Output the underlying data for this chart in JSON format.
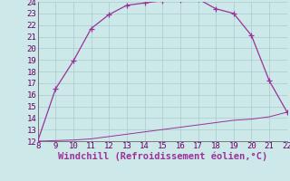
{
  "xlabel": "Windchill (Refroidissement éolien,°C)",
  "background_color": "#cce8e8",
  "line_color": "#993399",
  "grid_color": "#b8d8d8",
  "xlim": [
    8,
    22
  ],
  "ylim": [
    12,
    24
  ],
  "xticks": [
    8,
    9,
    10,
    11,
    12,
    13,
    14,
    15,
    16,
    17,
    18,
    19,
    20,
    21,
    22
  ],
  "yticks": [
    12,
    13,
    14,
    15,
    16,
    17,
    18,
    19,
    20,
    21,
    22,
    23,
    24
  ],
  "curve1_x": [
    8,
    9,
    10,
    11,
    12,
    13,
    14,
    15,
    16,
    17,
    18,
    19,
    20,
    21,
    22
  ],
  "curve1_y": [
    12.0,
    16.5,
    18.9,
    21.7,
    22.9,
    23.7,
    23.9,
    24.1,
    24.15,
    24.25,
    23.4,
    23.0,
    21.1,
    17.2,
    14.5
  ],
  "curve2_x": [
    8,
    9,
    10,
    11,
    12,
    13,
    14,
    15,
    16,
    17,
    18,
    19,
    20,
    21,
    22
  ],
  "curve2_y": [
    12.0,
    12.05,
    12.1,
    12.2,
    12.4,
    12.6,
    12.8,
    13.0,
    13.2,
    13.4,
    13.6,
    13.8,
    13.9,
    14.1,
    14.5
  ],
  "tick_fontsize": 6.5,
  "xlabel_fontsize": 7.5
}
